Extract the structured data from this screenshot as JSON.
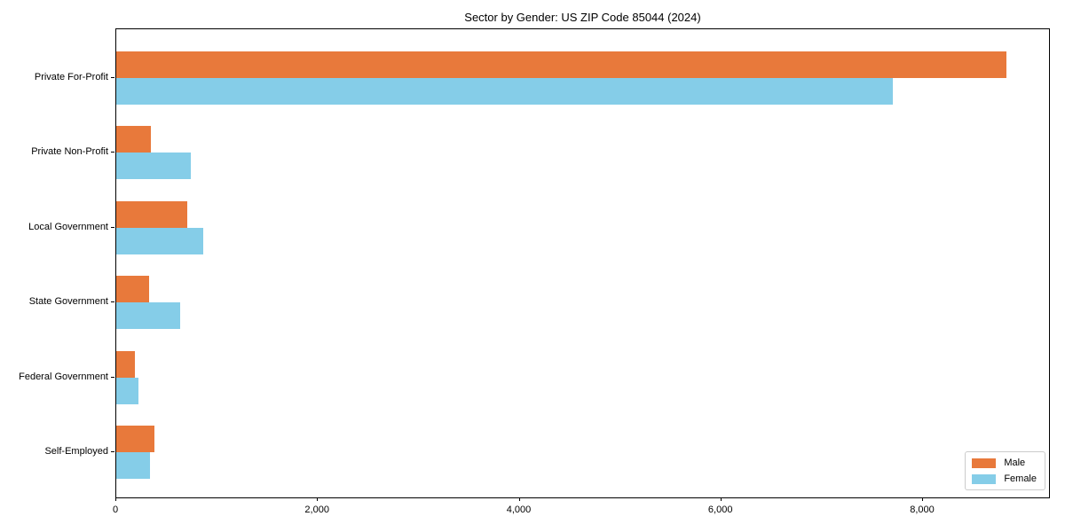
{
  "title": "Sector by Gender: US ZIP Code 85044 (2024)",
  "chart_data": {
    "type": "bar",
    "orientation": "horizontal",
    "title": "Sector by Gender: US ZIP Code 85044 (2024)",
    "categories": [
      "Private For-Profit",
      "Private Non-Profit",
      "Local Government",
      "State Government",
      "Federal Government",
      "Self-Employed"
    ],
    "series": [
      {
        "name": "Male",
        "color": "#e8793b",
        "values": [
          8830,
          340,
          700,
          325,
          180,
          375
        ]
      },
      {
        "name": "Female",
        "color": "#85cde8",
        "values": [
          7700,
          740,
          860,
          635,
          220,
          335
        ]
      }
    ],
    "xlabel": "",
    "ylabel": "",
    "xlim": [
      0,
      9250
    ],
    "xticks": [
      0,
      2000,
      4000,
      6000,
      8000
    ],
    "xtick_labels": [
      "0",
      "2,000",
      "4,000",
      "6,000",
      "8,000"
    ],
    "legend_position": "lower right",
    "grid": false,
    "bar_colors": {
      "male": "#e8793b",
      "female": "#85cde8"
    },
    "spine_color": "#000000"
  }
}
